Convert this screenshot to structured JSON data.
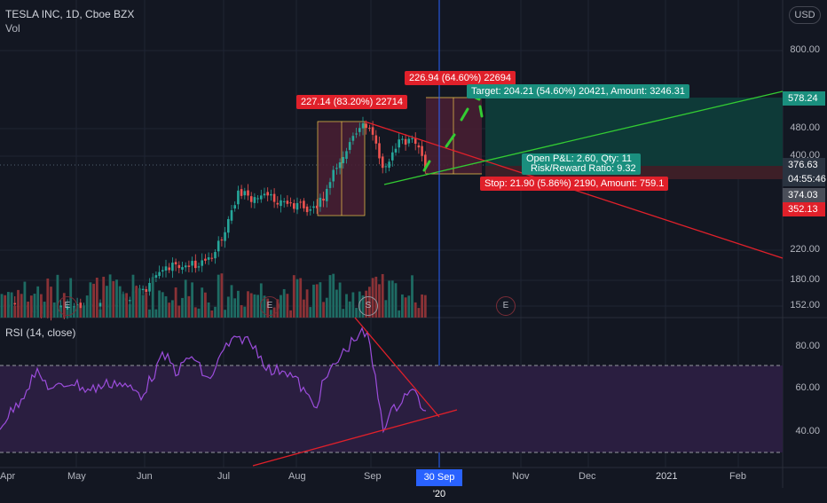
{
  "legend": {
    "title": "TESLA INC, 1D, Cboe BZX",
    "vol": "Vol",
    "currency": "USD"
  },
  "price_axis": [
    "800.00",
    "480.00",
    "400.00",
    "220.00",
    "180.00",
    "152.00"
  ],
  "price_tags": {
    "t578": "578.24",
    "t376": "376.63",
    "timer": "04:55:46",
    "t374": "374.03",
    "t352": "352.13"
  },
  "rsi": {
    "label": "RSI (14, close)",
    "axis": [
      "80.00",
      "60.00",
      "40.00"
    ]
  },
  "time_axis": [
    "Apr",
    "May",
    "Jun",
    "Jul",
    "Aug",
    "Sep",
    "Nov",
    "Dec",
    "2021",
    "Feb"
  ],
  "crosshair_date": "30 Sep '20",
  "annotations": {
    "range1": "227.14 (83.20%) 22714",
    "range2": "226.94 (64.60%) 22694",
    "target": "Target: 204.21 (54.60%) 20421, Amount: 3246.31",
    "pnl_line1": "Open P&L: 2.60, Qty: 11",
    "pnl_line2": "Risk/Reward Ratio: 9.32",
    "stop": "Stop: 21.90 (5.86%) 2190, Amount: 759.1"
  },
  "events": [
    "E",
    "E",
    "S",
    "E"
  ],
  "colors": {
    "background": "#131722",
    "up": "#26a69a",
    "down": "#ef5350",
    "target_zone": "#0b3d3a",
    "stop_zone": "#3a1f26",
    "green_line": "#33cc33",
    "red_line": "#e0202a",
    "rsi_band": "#2a1e40",
    "rsi_line": "#9c4ddc"
  }
}
